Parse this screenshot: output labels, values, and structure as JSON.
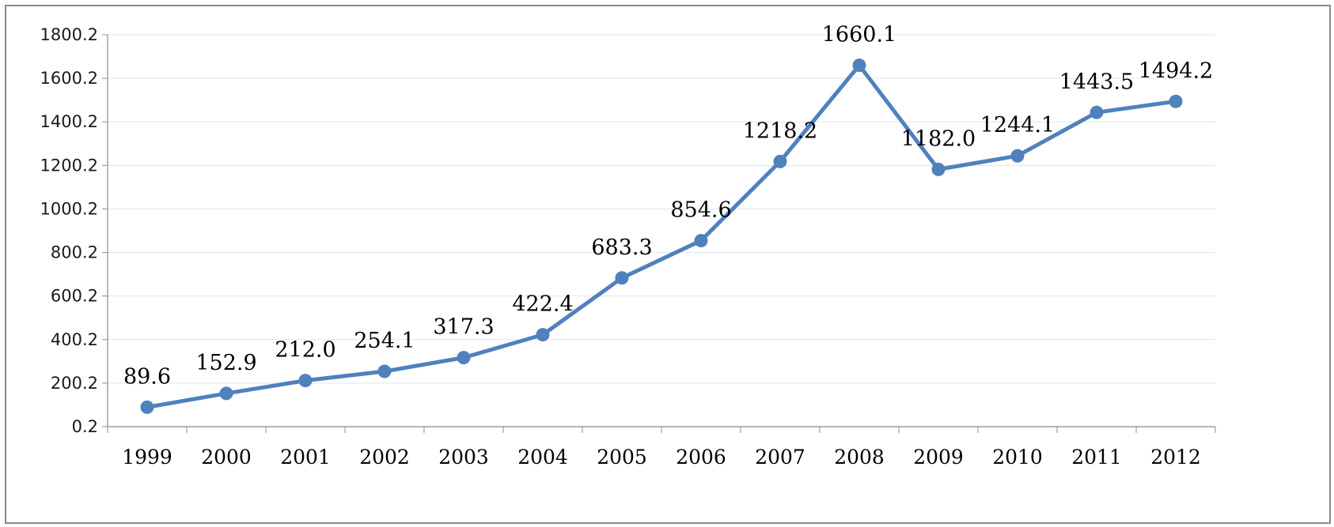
{
  "chart_data": {
    "type": "line",
    "categories": [
      "1999",
      "2000",
      "2001",
      "2002",
      "2003",
      "2004",
      "2005",
      "2006",
      "2007",
      "2008",
      "2009",
      "2010",
      "2011",
      "2012"
    ],
    "series": [
      {
        "values": [
          89.6,
          152.9,
          212.0,
          254.1,
          317.3,
          422.4,
          683.3,
          854.6,
          1218.2,
          1660.1,
          1182.0,
          1244.1,
          1443.5,
          1494.2
        ],
        "labels": [
          "89.6",
          "152.9",
          "212.0",
          "254.1",
          "317.3",
          "422.4",
          "683.3",
          "854.6",
          "1218.2",
          "1660.1",
          "1182.0",
          "1244.1",
          "1443.5",
          "1494.2"
        ],
        "color": "#4f81bd"
      }
    ],
    "yticks": [
      "0.2",
      "200.2",
      "400.2",
      "600.2",
      "800.2",
      "1000.2",
      "1200.2",
      "1400.2",
      "1600.2",
      "1800.2"
    ],
    "ylim": [
      0.2,
      1800.2
    ],
    "title": "",
    "xlabel": "",
    "ylabel": "",
    "grid": true,
    "legend": "none",
    "colors": {
      "line": "#4f81bd",
      "grid": "#dde6f0",
      "axis": "#8c8c8c",
      "frame": "#8a8a8a"
    }
  }
}
